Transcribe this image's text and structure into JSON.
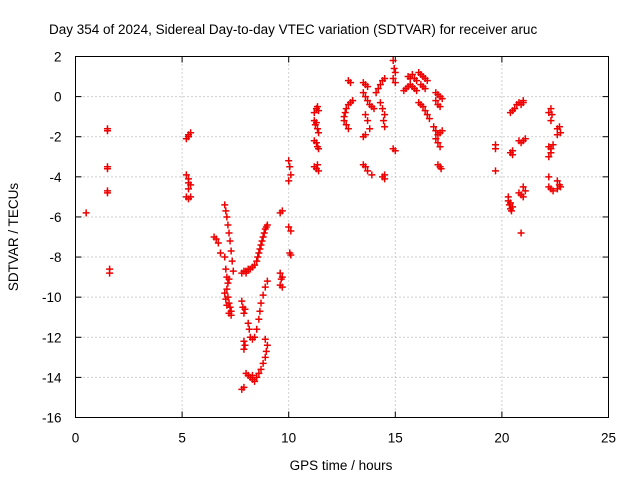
{
  "chart_data": {
    "type": "scatter",
    "title": "Day 354 of 2024, Sidereal Day-to-day VTEC variation (SDTVAR) for receiver aruc",
    "xlabel": "GPS time / hours",
    "ylabel": "SDTVAR / TECUs",
    "xlim": [
      0,
      25
    ],
    "ylim": [
      -16,
      2
    ],
    "x_ticks": [
      "0",
      "5",
      "10",
      "15",
      "20",
      "25"
    ],
    "y_ticks": [
      "2",
      "0",
      "-2",
      "-4",
      "-6",
      "-8",
      "-10",
      "-12",
      "-14",
      "-16"
    ],
    "grid": true,
    "marker": "+",
    "color": "#ee0000",
    "series": [
      {
        "name": "SDTVAR",
        "points": [
          [
            0.5,
            -5.8
          ],
          [
            1.5,
            -1.7
          ],
          [
            1.5,
            -1.6
          ],
          [
            1.5,
            -3.5
          ],
          [
            1.5,
            -3.6
          ],
          [
            1.5,
            -4.7
          ],
          [
            1.5,
            -4.8
          ],
          [
            1.6,
            -8.6
          ],
          [
            1.6,
            -8.8
          ],
          [
            5.2,
            -2.1
          ],
          [
            5.3,
            -2.0
          ],
          [
            5.3,
            -1.9
          ],
          [
            5.4,
            -1.8
          ],
          [
            5.2,
            -3.9
          ],
          [
            5.3,
            -4.1
          ],
          [
            5.3,
            -4.3
          ],
          [
            5.4,
            -4.4
          ],
          [
            5.3,
            -4.6
          ],
          [
            5.2,
            -5.0
          ],
          [
            5.3,
            -5.1
          ],
          [
            5.4,
            -5.0
          ],
          [
            6.5,
            -7.0
          ],
          [
            6.6,
            -7.1
          ],
          [
            6.7,
            -7.3
          ],
          [
            6.8,
            -7.8
          ],
          [
            7.0,
            -5.4
          ],
          [
            7.05,
            -5.7
          ],
          [
            7.1,
            -6.0
          ],
          [
            7.15,
            -6.4
          ],
          [
            7.2,
            -6.8
          ],
          [
            7.25,
            -7.2
          ],
          [
            7.3,
            -7.7
          ],
          [
            7.35,
            -8.2
          ],
          [
            7.4,
            -8.7
          ],
          [
            7.0,
            -8.0
          ],
          [
            7.05,
            -8.6
          ],
          [
            7.1,
            -9.0
          ],
          [
            7.15,
            -9.3
          ],
          [
            7.2,
            -9.1
          ],
          [
            7.1,
            -9.6
          ],
          [
            7.15,
            -10.0
          ],
          [
            7.2,
            -10.3
          ],
          [
            7.25,
            -10.5
          ],
          [
            7.3,
            -10.7
          ],
          [
            7.05,
            -10.1
          ],
          [
            7.1,
            -10.4
          ],
          [
            7.2,
            -10.8
          ],
          [
            7.3,
            -10.9
          ],
          [
            7.0,
            -9.8
          ],
          [
            7.8,
            -8.8
          ],
          [
            7.9,
            -8.7
          ],
          [
            8.0,
            -8.8
          ],
          [
            7.8,
            -10.2
          ],
          [
            7.85,
            -10.5
          ],
          [
            7.9,
            -10.8
          ],
          [
            7.95,
            -10.6
          ],
          [
            7.9,
            -12.2
          ],
          [
            7.9,
            -12.6
          ],
          [
            7.95,
            -12.4
          ],
          [
            7.8,
            -14.6
          ],
          [
            7.9,
            -14.5
          ],
          [
            8.0,
            -8.7
          ],
          [
            8.1,
            -8.6
          ],
          [
            8.2,
            -8.6
          ],
          [
            8.3,
            -8.5
          ],
          [
            8.4,
            -8.4
          ],
          [
            8.5,
            -8.2
          ],
          [
            8.55,
            -8.0
          ],
          [
            8.6,
            -7.8
          ],
          [
            8.65,
            -7.6
          ],
          [
            8.7,
            -7.4
          ],
          [
            8.75,
            -7.2
          ],
          [
            8.8,
            -7.0
          ],
          [
            8.85,
            -6.8
          ],
          [
            8.9,
            -6.6
          ],
          [
            8.95,
            -6.5
          ],
          [
            9.0,
            -6.4
          ],
          [
            8.1,
            -11.3
          ],
          [
            8.15,
            -11.6
          ],
          [
            8.2,
            -12.0
          ],
          [
            8.3,
            -12.1
          ],
          [
            8.4,
            -12.0
          ],
          [
            8.5,
            -11.6
          ],
          [
            8.6,
            -11.1
          ],
          [
            8.65,
            -10.7
          ],
          [
            8.7,
            -10.3
          ],
          [
            8.8,
            -9.9
          ],
          [
            8.9,
            -9.5
          ],
          [
            9.0,
            -9.2
          ],
          [
            8.1,
            -13.9
          ],
          [
            8.2,
            -14.0
          ],
          [
            8.3,
            -14.1
          ],
          [
            8.4,
            -14.2
          ],
          [
            8.5,
            -14.0
          ],
          [
            8.6,
            -13.8
          ],
          [
            8.7,
            -13.6
          ],
          [
            8.8,
            -13.3
          ],
          [
            8.9,
            -13.0
          ],
          [
            8.95,
            -12.7
          ],
          [
            9.0,
            -12.4
          ],
          [
            8.9,
            -12.1
          ],
          [
            8.0,
            -13.8
          ],
          [
            8.3,
            -13.9
          ],
          [
            9.6,
            -5.8
          ],
          [
            9.7,
            -5.7
          ],
          [
            9.6,
            -8.8
          ],
          [
            9.65,
            -9.1
          ],
          [
            9.6,
            -9.4
          ],
          [
            9.7,
            -9.5
          ],
          [
            9.7,
            -9.0
          ],
          [
            10.0,
            -3.2
          ],
          [
            10.05,
            -3.5
          ],
          [
            10.1,
            -3.9
          ],
          [
            10.0,
            -4.2
          ],
          [
            10.0,
            -6.5
          ],
          [
            10.1,
            -6.7
          ],
          [
            10.05,
            -7.8
          ],
          [
            10.1,
            -7.9
          ],
          [
            11.2,
            -0.8
          ],
          [
            11.3,
            -0.6
          ],
          [
            11.35,
            -0.5
          ],
          [
            11.4,
            -0.7
          ],
          [
            11.2,
            -1.2
          ],
          [
            11.25,
            -1.4
          ],
          [
            11.3,
            -1.3
          ],
          [
            11.35,
            -1.6
          ],
          [
            11.4,
            -1.8
          ],
          [
            11.2,
            -2.2
          ],
          [
            11.3,
            -2.3
          ],
          [
            11.35,
            -2.5
          ],
          [
            11.4,
            -2.6
          ],
          [
            11.2,
            -3.5
          ],
          [
            11.3,
            -3.6
          ],
          [
            11.4,
            -3.7
          ],
          [
            11.35,
            -3.4
          ],
          [
            12.6,
            -1.0
          ],
          [
            12.65,
            -0.8
          ],
          [
            12.7,
            -0.6
          ],
          [
            12.8,
            -0.4
          ],
          [
            12.9,
            -0.3
          ],
          [
            13.0,
            -0.2
          ],
          [
            12.6,
            -1.2
          ],
          [
            12.7,
            -1.4
          ],
          [
            12.8,
            -1.6
          ],
          [
            12.8,
            0.8
          ],
          [
            12.9,
            0.7
          ],
          [
            13.5,
            0.7
          ],
          [
            13.6,
            0.6
          ],
          [
            13.7,
            0.5
          ],
          [
            13.5,
            0.2
          ],
          [
            13.6,
            0.0
          ],
          [
            13.7,
            -0.2
          ],
          [
            13.8,
            -0.4
          ],
          [
            13.9,
            -0.5
          ],
          [
            14.0,
            -0.6
          ],
          [
            13.6,
            -0.9
          ],
          [
            13.7,
            -1.2
          ],
          [
            13.5,
            -2.0
          ],
          [
            13.6,
            -1.9
          ],
          [
            13.8,
            -1.6
          ],
          [
            13.5,
            -3.4
          ],
          [
            13.6,
            -3.5
          ],
          [
            13.7,
            -3.7
          ],
          [
            13.9,
            -3.9
          ],
          [
            14.1,
            0.2
          ],
          [
            14.2,
            0.4
          ],
          [
            14.3,
            0.6
          ],
          [
            14.4,
            0.8
          ],
          [
            14.5,
            0.9
          ],
          [
            14.3,
            -0.3
          ],
          [
            14.4,
            -0.6
          ],
          [
            14.5,
            -0.9
          ],
          [
            14.45,
            -1.2
          ],
          [
            14.5,
            -1.5
          ],
          [
            14.4,
            -4.0
          ],
          [
            14.5,
            -4.1
          ],
          [
            14.5,
            -3.9
          ],
          [
            14.9,
            1.8
          ],
          [
            14.95,
            1.4
          ],
          [
            15.0,
            1.2
          ],
          [
            14.9,
            0.9
          ],
          [
            15.0,
            0.7
          ],
          [
            14.9,
            -2.6
          ],
          [
            15.0,
            -2.7
          ],
          [
            15.4,
            0.3
          ],
          [
            15.5,
            0.4
          ],
          [
            15.6,
            0.5
          ],
          [
            15.7,
            0.6
          ],
          [
            15.8,
            0.5
          ],
          [
            15.9,
            0.4
          ],
          [
            16.0,
            0.3
          ],
          [
            15.6,
            1.0
          ],
          [
            15.7,
            0.9
          ],
          [
            15.8,
            1.1
          ],
          [
            15.9,
            0.9
          ],
          [
            16.0,
            0.8
          ],
          [
            16.1,
            1.2
          ],
          [
            16.2,
            1.1
          ],
          [
            16.3,
            1.0
          ],
          [
            16.4,
            0.9
          ],
          [
            16.5,
            0.8
          ],
          [
            16.2,
            0.6
          ],
          [
            16.3,
            0.5
          ],
          [
            16.4,
            0.4
          ],
          [
            16.1,
            -0.3
          ],
          [
            16.2,
            -0.4
          ],
          [
            16.3,
            -0.5
          ],
          [
            16.4,
            -0.7
          ],
          [
            16.5,
            -0.9
          ],
          [
            16.6,
            -1.1
          ],
          [
            16.9,
            0.2
          ],
          [
            17.0,
            0.1
          ],
          [
            17.1,
            0.0
          ],
          [
            17.2,
            -0.1
          ],
          [
            16.9,
            -0.2
          ],
          [
            17.0,
            -0.4
          ],
          [
            17.1,
            -0.5
          ],
          [
            16.8,
            -1.5
          ],
          [
            16.9,
            -1.7
          ],
          [
            17.0,
            -1.9
          ],
          [
            17.1,
            -1.8
          ],
          [
            17.2,
            -1.7
          ],
          [
            16.9,
            -2.1
          ],
          [
            17.0,
            -2.3
          ],
          [
            17.1,
            -2.5
          ],
          [
            17.0,
            -3.4
          ],
          [
            17.1,
            -3.5
          ],
          [
            17.15,
            -3.6
          ],
          [
            19.7,
            -2.4
          ],
          [
            19.7,
            -2.6
          ],
          [
            19.7,
            -3.7
          ],
          [
            20.4,
            -0.8
          ],
          [
            20.5,
            -0.7
          ],
          [
            20.6,
            -0.6
          ],
          [
            20.7,
            -0.4
          ],
          [
            20.8,
            -0.3
          ],
          [
            20.9,
            -0.4
          ],
          [
            21.0,
            -0.3
          ],
          [
            21.0,
            -0.2
          ],
          [
            20.4,
            -2.8
          ],
          [
            20.5,
            -2.9
          ],
          [
            20.5,
            -2.7
          ],
          [
            20.3,
            -5.2
          ],
          [
            20.35,
            -5.4
          ],
          [
            20.4,
            -5.6
          ],
          [
            20.45,
            -5.7
          ],
          [
            20.5,
            -5.5
          ],
          [
            20.3,
            -5.0
          ],
          [
            20.4,
            -5.3
          ],
          [
            20.8,
            -2.2
          ],
          [
            20.9,
            -2.3
          ],
          [
            21.0,
            -2.2
          ],
          [
            21.1,
            -2.1
          ],
          [
            20.8,
            -4.8
          ],
          [
            20.9,
            -4.9
          ],
          [
            21.0,
            -5.0
          ],
          [
            21.1,
            -4.7
          ],
          [
            21.0,
            -4.5
          ],
          [
            20.9,
            -6.8
          ],
          [
            22.2,
            -0.8
          ],
          [
            22.3,
            -0.6
          ],
          [
            22.35,
            -0.9
          ],
          [
            22.3,
            -1.2
          ],
          [
            22.2,
            -2.5
          ],
          [
            22.3,
            -2.6
          ],
          [
            22.4,
            -2.4
          ],
          [
            22.2,
            -3.0
          ],
          [
            22.3,
            -2.8
          ],
          [
            22.2,
            -4.0
          ],
          [
            22.2,
            -4.5
          ],
          [
            22.3,
            -4.6
          ],
          [
            22.4,
            -4.7
          ],
          [
            22.6,
            -1.6
          ],
          [
            22.7,
            -1.5
          ],
          [
            22.75,
            -1.8
          ],
          [
            22.6,
            -1.9
          ],
          [
            22.6,
            -4.2
          ],
          [
            22.7,
            -4.4
          ],
          [
            22.75,
            -4.5
          ],
          [
            22.6,
            -4.6
          ]
        ]
      }
    ]
  }
}
